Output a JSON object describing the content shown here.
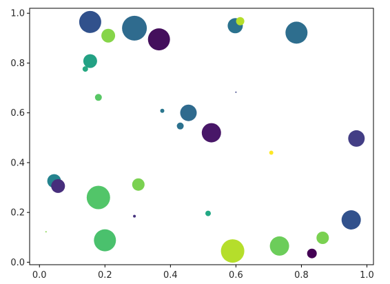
{
  "chart_data": {
    "type": "scatter",
    "title": "",
    "xlabel": "",
    "ylabel": "",
    "xlim": [
      -0.03,
      1.02
    ],
    "ylim": [
      -0.01,
      1.02
    ],
    "grid": false,
    "legend": "none",
    "xticks": [
      "0.0",
      "0.2",
      "0.4",
      "0.6",
      "0.8",
      "1.0"
    ],
    "xtick_values": [
      0.0,
      0.2,
      0.4,
      0.6,
      0.8,
      1.0
    ],
    "yticks": [
      "0.0",
      "0.2",
      "0.4",
      "0.6",
      "0.8",
      "1.0"
    ],
    "ytick_values": [
      0.0,
      0.2,
      0.4,
      0.6,
      0.8,
      1.0
    ],
    "points": [
      {
        "x": 0.155,
        "y": 0.965,
        "r": 16,
        "color": "#31518c"
      },
      {
        "x": 0.21,
        "y": 0.91,
        "r": 10,
        "color": "#86d549"
      },
      {
        "x": 0.29,
        "y": 0.94,
        "r": 18,
        "color": "#2f6b8e"
      },
      {
        "x": 0.365,
        "y": 0.895,
        "r": 16,
        "color": "#440f5c"
      },
      {
        "x": 0.155,
        "y": 0.808,
        "r": 10,
        "color": "#23a184"
      },
      {
        "x": 0.14,
        "y": 0.776,
        "r": 4,
        "color": "#27a882"
      },
      {
        "x": 0.18,
        "y": 0.662,
        "r": 5,
        "color": "#58c765"
      },
      {
        "x": 0.375,
        "y": 0.608,
        "r": 3,
        "color": "#2a768e"
      },
      {
        "x": 0.455,
        "y": 0.6,
        "r": 12,
        "color": "#2f6a8e"
      },
      {
        "x": 0.43,
        "y": 0.547,
        "r": 5,
        "color": "#2c718e"
      },
      {
        "x": 0.525,
        "y": 0.52,
        "r": 14,
        "color": "#481768"
      },
      {
        "x": 0.598,
        "y": 0.95,
        "r": 11,
        "color": "#2b728e"
      },
      {
        "x": 0.613,
        "y": 0.968,
        "r": 6,
        "color": "#b5de2b"
      },
      {
        "x": 0.6,
        "y": 0.683,
        "r": 1,
        "color": "#3f4788"
      },
      {
        "x": 0.785,
        "y": 0.922,
        "r": 16,
        "color": "#2e6e8e"
      },
      {
        "x": 0.708,
        "y": 0.44,
        "r": 3,
        "color": "#fde725"
      },
      {
        "x": 0.968,
        "y": 0.497,
        "r": 12,
        "color": "#433e85"
      },
      {
        "x": 0.045,
        "y": 0.326,
        "r": 10,
        "color": "#25838e"
      },
      {
        "x": 0.057,
        "y": 0.306,
        "r": 10,
        "color": "#472e7c"
      },
      {
        "x": 0.302,
        "y": 0.312,
        "r": 9,
        "color": "#7ad151"
      },
      {
        "x": 0.18,
        "y": 0.26,
        "r": 17,
        "color": "#52c569"
      },
      {
        "x": 0.2,
        "y": 0.088,
        "r": 16,
        "color": "#4ac16d"
      },
      {
        "x": 0.29,
        "y": 0.185,
        "r": 2,
        "color": "#46327e"
      },
      {
        "x": 0.515,
        "y": 0.196,
        "r": 4,
        "color": "#22a884"
      },
      {
        "x": 0.59,
        "y": 0.045,
        "r": 17,
        "color": "#b5de2b"
      },
      {
        "x": 0.733,
        "y": 0.065,
        "r": 14,
        "color": "#6ccd5a"
      },
      {
        "x": 0.832,
        "y": 0.035,
        "r": 7,
        "color": "#440154"
      },
      {
        "x": 0.865,
        "y": 0.098,
        "r": 9,
        "color": "#7ad151"
      },
      {
        "x": 0.952,
        "y": 0.17,
        "r": 14,
        "color": "#31518c"
      },
      {
        "x": 0.02,
        "y": 0.122,
        "r": 1,
        "color": "#84d44b"
      }
    ]
  }
}
